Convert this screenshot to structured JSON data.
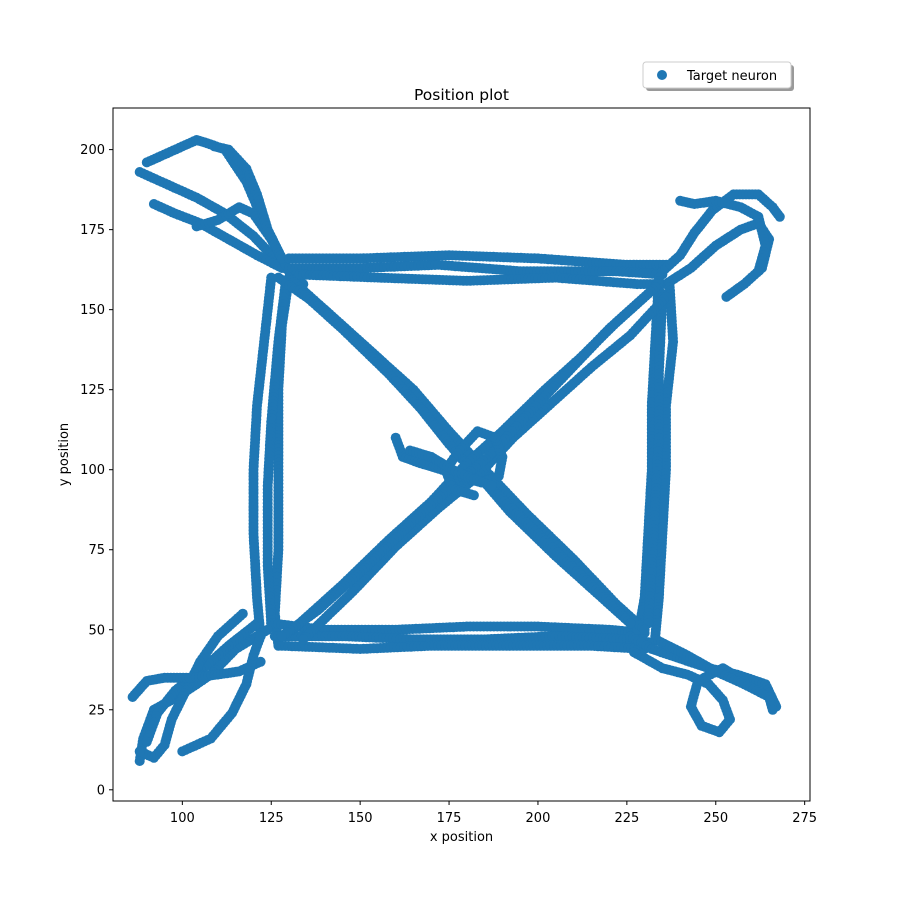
{
  "chart_data": {
    "type": "scatter",
    "title": "Position plot",
    "xlabel": "x position",
    "ylabel": "y position",
    "xlim": [
      80.5,
      276.5
    ],
    "ylim": [
      -3.5,
      213
    ],
    "xticks": [
      100,
      125,
      150,
      175,
      200,
      225,
      250,
      275
    ],
    "yticks": [
      0,
      25,
      50,
      75,
      100,
      125,
      150,
      175,
      200
    ],
    "grid": false,
    "legend_position": "top-right",
    "marker_color": "#1f77b4",
    "series": [
      {
        "name": "Target neuron",
        "paths": [
          [
            [
              90,
              196
            ],
            [
              94,
              198
            ],
            [
              100,
              201
            ],
            [
              104,
              203
            ],
            [
              107,
              202
            ],
            [
              112,
              200
            ],
            [
              118,
              190
            ],
            [
              123,
              177
            ],
            [
              128,
              166
            ],
            [
              131,
              160
            ],
            [
              134,
              158
            ]
          ],
          [
            [
              88,
              193
            ],
            [
              96,
              189
            ],
            [
              104,
              185
            ],
            [
              112,
              180
            ],
            [
              120,
              173
            ],
            [
              126,
              166
            ],
            [
              130,
              162
            ]
          ],
          [
            [
              92,
              183
            ],
            [
              98,
              180
            ],
            [
              105,
              177
            ],
            [
              113,
              172
            ],
            [
              121,
              167
            ],
            [
              128,
              163
            ]
          ],
          [
            [
              104,
              176
            ],
            [
              110,
              178
            ],
            [
              116,
              182
            ],
            [
              120,
              180
            ],
            [
              125,
              172
            ],
            [
              129,
              164
            ]
          ],
          [
            [
              109,
              201
            ],
            [
              113,
              200
            ],
            [
              118,
              194
            ],
            [
              121,
              186
            ],
            [
              124,
              175
            ],
            [
              128,
              166
            ]
          ],
          [
            [
              130,
              166
            ],
            [
              150,
              166
            ],
            [
              175,
              167
            ],
            [
              200,
              166
            ],
            [
              225,
              164
            ],
            [
              237,
              164
            ]
          ],
          [
            [
              130,
              163
            ],
            [
              150,
              163
            ],
            [
              172,
              164
            ],
            [
              195,
              162
            ],
            [
              222,
              162
            ],
            [
              235,
              161
            ]
          ],
          [
            [
              132,
              161
            ],
            [
              155,
              160
            ],
            [
              180,
              159
            ],
            [
              205,
              160
            ],
            [
              228,
              158
            ],
            [
              236,
              158
            ]
          ],
          [
            [
              235,
              162
            ],
            [
              240,
              167
            ],
            [
              244,
              174
            ],
            [
              249,
              181
            ],
            [
              255,
              186
            ],
            [
              262,
              186
            ],
            [
              266,
              182
            ],
            [
              268,
              179
            ]
          ],
          [
            [
              236,
              158
            ],
            [
              243,
              163
            ],
            [
              250,
              170
            ],
            [
              257,
              175
            ],
            [
              262,
              177
            ],
            [
              265,
              172
            ],
            [
              263,
              163
            ],
            [
              258,
              158
            ],
            [
              253,
              154
            ]
          ],
          [
            [
              240,
              184
            ],
            [
              244,
              183
            ],
            [
              250,
              184
            ],
            [
              257,
              182
            ],
            [
              262,
              179
            ],
            [
              264,
              170
            ],
            [
              262,
              162
            ]
          ],
          [
            [
              130,
              160
            ],
            [
              128,
              145
            ],
            [
              127,
              125
            ],
            [
              127,
              100
            ],
            [
              127,
              75
            ],
            [
              126,
              55
            ],
            [
              127,
              45
            ]
          ],
          [
            [
              125,
              160
            ],
            [
              123,
              140
            ],
            [
              121,
              120
            ],
            [
              120,
              100
            ],
            [
              120,
              80
            ],
            [
              121,
              60
            ],
            [
              122,
              48
            ]
          ],
          [
            [
              129,
              158
            ],
            [
              127,
              140
            ],
            [
              125,
              115
            ],
            [
              124,
              95
            ],
            [
              124,
              70
            ],
            [
              125,
              52
            ]
          ],
          [
            [
              234,
              160
            ],
            [
              233,
              140
            ],
            [
              232,
              120
            ],
            [
              232,
              100
            ],
            [
              231,
              80
            ],
            [
              230,
              60
            ],
            [
              228,
              48
            ]
          ],
          [
            [
              237,
              158
            ],
            [
              238,
              140
            ],
            [
              236,
              120
            ],
            [
              236,
              100
            ],
            [
              235,
              80
            ],
            [
              234,
              60
            ],
            [
              233,
              48
            ]
          ],
          [
            [
              235,
              155
            ],
            [
              234,
              130
            ],
            [
              234,
              110
            ],
            [
              233,
              90
            ],
            [
              232,
              70
            ],
            [
              231,
              52
            ]
          ],
          [
            [
              125,
              52
            ],
            [
              140,
              50
            ],
            [
              160,
              50
            ],
            [
              180,
              51
            ],
            [
              200,
              51
            ],
            [
              220,
              50
            ],
            [
              230,
              49
            ]
          ],
          [
            [
              126,
              48
            ],
            [
              145,
              48
            ],
            [
              165,
              47
            ],
            [
              185,
              47
            ],
            [
              205,
              48
            ],
            [
              225,
              47
            ],
            [
              232,
              46
            ]
          ],
          [
            [
              128,
              45
            ],
            [
              150,
              44
            ],
            [
              170,
              45
            ],
            [
              195,
              45
            ],
            [
              215,
              45
            ],
            [
              230,
              44
            ]
          ],
          [
            [
              226,
              48
            ],
            [
              232,
              44
            ],
            [
              240,
              41
            ],
            [
              248,
              38
            ],
            [
              256,
              36
            ],
            [
              264,
              33
            ],
            [
              267,
              26
            ]
          ],
          [
            [
              227,
              43
            ],
            [
              235,
              38
            ],
            [
              242,
              36
            ],
            [
              248,
              33
            ],
            [
              252,
              28
            ],
            [
              254,
              22
            ],
            [
              251,
              18
            ],
            [
              246,
              20
            ],
            [
              243,
              26
            ],
            [
              245,
              34
            ],
            [
              252,
              38
            ],
            [
              258,
              34
            ]
          ],
          [
            [
              233,
              47
            ],
            [
              242,
              42
            ],
            [
              250,
              37
            ],
            [
              258,
              33
            ],
            [
              265,
              29
            ],
            [
              266,
              25
            ]
          ],
          [
            [
              124,
              50
            ],
            [
              115,
              44
            ],
            [
              108,
              36
            ],
            [
              100,
              30
            ],
            [
              92,
              25
            ],
            [
              89,
              16
            ],
            [
              88,
              9
            ]
          ],
          [
            [
              121,
              52
            ],
            [
              113,
              45
            ],
            [
              106,
              38
            ],
            [
              98,
              31
            ],
            [
              93,
              24
            ],
            [
              90,
              15
            ]
          ],
          [
            [
              117,
              55
            ],
            [
              110,
              48
            ],
            [
              105,
              40
            ],
            [
              101,
              31
            ],
            [
              97,
              22
            ],
            [
              95,
              14
            ],
            [
              92,
              10
            ],
            [
              88,
              12
            ]
          ],
          [
            [
              86,
              29
            ],
            [
              90,
              34
            ],
            [
              95,
              35
            ],
            [
              102,
              35
            ],
            [
              110,
              36
            ],
            [
              116,
              37
            ],
            [
              122,
              40
            ]
          ],
          [
            [
              100,
              12
            ],
            [
              108,
              16
            ],
            [
              114,
              24
            ],
            [
              118,
              33
            ],
            [
              120,
              42
            ],
            [
              122,
              48
            ]
          ],
          [
            [
              130,
              160
            ],
            [
              142,
              148
            ],
            [
              155,
              135
            ],
            [
              165,
              122
            ],
            [
              175,
              108
            ],
            [
              182,
              100
            ],
            [
              192,
              87
            ],
            [
              205,
              73
            ],
            [
              218,
              60
            ],
            [
              228,
              50
            ]
          ],
          [
            [
              127,
              160
            ],
            [
              140,
              150
            ],
            [
              152,
              138
            ],
            [
              165,
              125
            ],
            [
              175,
              112
            ],
            [
              185,
              100
            ],
            [
              197,
              86
            ],
            [
              210,
              72
            ],
            [
              222,
              58
            ],
            [
              230,
              50
            ]
          ],
          [
            [
              133,
              156
            ],
            [
              145,
              144
            ],
            [
              158,
              130
            ],
            [
              168,
              118
            ],
            [
              178,
              104
            ],
            [
              188,
              93
            ],
            [
              200,
              80
            ],
            [
              215,
              64
            ],
            [
              226,
              52
            ]
          ],
          [
            [
              233,
              157
            ],
            [
              222,
              146
            ],
            [
              212,
              135
            ],
            [
              202,
              125
            ],
            [
              190,
              112
            ],
            [
              180,
              102
            ],
            [
              170,
              90
            ],
            [
              158,
              78
            ],
            [
              145,
              64
            ],
            [
              131,
              50
            ]
          ],
          [
            [
              236,
              154
            ],
            [
              226,
              142
            ],
            [
              215,
              132
            ],
            [
              205,
              122
            ],
            [
              193,
              110
            ],
            [
              183,
              98
            ],
            [
              172,
              88
            ],
            [
              160,
              76
            ],
            [
              148,
              62
            ],
            [
              134,
              47
            ]
          ],
          [
            [
              231,
              155
            ],
            [
              220,
              144
            ],
            [
              208,
              130
            ],
            [
              196,
              116
            ],
            [
              186,
              104
            ],
            [
              176,
              95
            ],
            [
              165,
              84
            ],
            [
              152,
              70
            ],
            [
              138,
              56
            ],
            [
              128,
              48
            ]
          ],
          [
            [
              160,
              110
            ],
            [
              162,
              104
            ],
            [
              167,
              102
            ],
            [
              173,
              100
            ],
            [
              178,
              98
            ],
            [
              184,
              96
            ],
            [
              189,
              98
            ],
            [
              190,
              104
            ],
            [
              188,
              110
            ],
            [
              183,
              112
            ],
            [
              178,
              106
            ],
            [
              174,
              100
            ],
            [
              176,
              94
            ],
            [
              182,
              92
            ]
          ],
          [
            [
              164,
              106
            ],
            [
              170,
              104
            ],
            [
              176,
              100
            ],
            [
              182,
              97
            ],
            [
              187,
              95
            ]
          ]
        ]
      }
    ]
  }
}
